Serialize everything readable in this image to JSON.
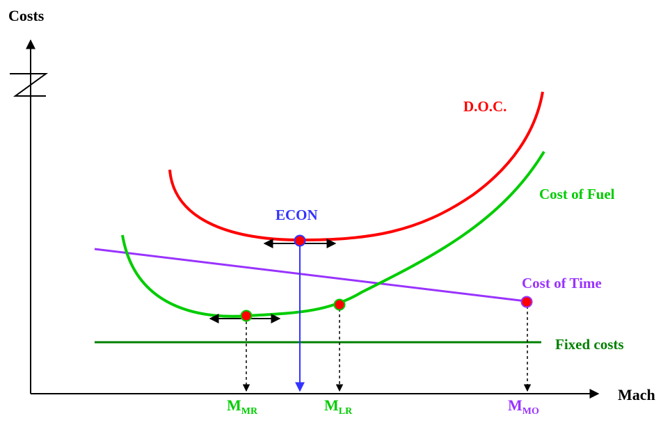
{
  "labels": {
    "y_axis": "Costs",
    "x_axis": "Mach",
    "doc": "D.O.C.",
    "cost_of_fuel": "Cost of Fuel",
    "cost_of_time": "Cost of Time",
    "fixed_costs": "Fixed costs",
    "econ": "ECON",
    "m_mr": {
      "main": "M",
      "sub": "MR"
    },
    "m_lr": {
      "main": "M",
      "sub": "LR"
    },
    "m_mo": {
      "main": "M",
      "sub": "MO"
    }
  },
  "colors": {
    "axis": "#000000",
    "doc": "#ff0000",
    "fuel": "#00cc00",
    "time": "#9933ff",
    "fixed": "#008000",
    "econ": "#3333ff",
    "marker": "#ff0000",
    "arrows": "#000000"
  }
}
